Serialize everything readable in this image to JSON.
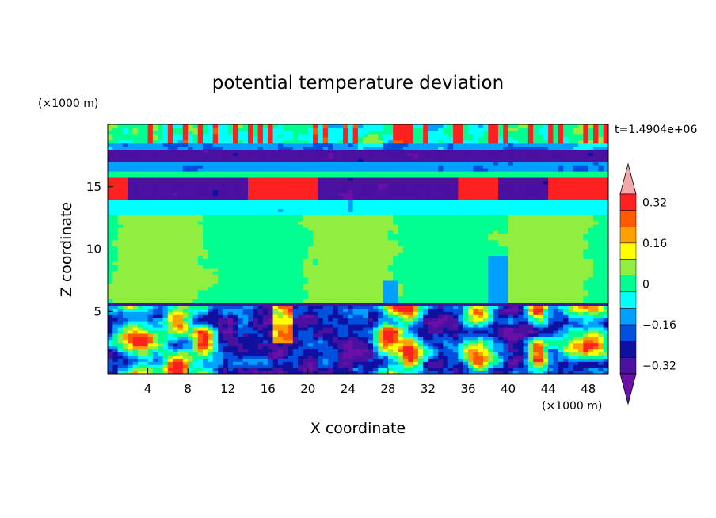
{
  "chart_data": {
    "type": "heatmap",
    "title": "potential temperature deviation",
    "xlabel": "X coordinate",
    "ylabel": "Z coordinate",
    "x_unit": "(×1000 m)",
    "y_unit": "(×1000 m)",
    "time_label": "t=1.4904e+06",
    "xlim": [
      0,
      50
    ],
    "ylim": [
      0,
      20
    ],
    "x_ticks": [
      4,
      8,
      12,
      16,
      20,
      24,
      28,
      32,
      36,
      40,
      44,
      48
    ],
    "y_ticks": [
      5,
      10,
      15
    ],
    "colorbar": {
      "levels": [
        -0.4,
        -0.32,
        -0.24,
        -0.16,
        -0.08,
        0,
        0.08,
        0.16,
        0.24,
        0.32,
        0.4
      ],
      "colors": [
        "#6a0fa8",
        "#4a10a0",
        "#1010a0",
        "#0050e0",
        "#00a0ff",
        "#00ffff",
        "#00ff90",
        "#90ee40",
        "#ffff00",
        "#ffa000",
        "#ff5a00",
        "#ff2020",
        "#f4a8a8"
      ],
      "tick_labels": [
        "0.32",
        "0.16",
        "0",
        "-0.16",
        "-0.32"
      ],
      "tick_values": [
        0.32,
        0.16,
        0,
        -0.16,
        -0.32
      ]
    },
    "grid": false,
    "legend": "right"
  }
}
